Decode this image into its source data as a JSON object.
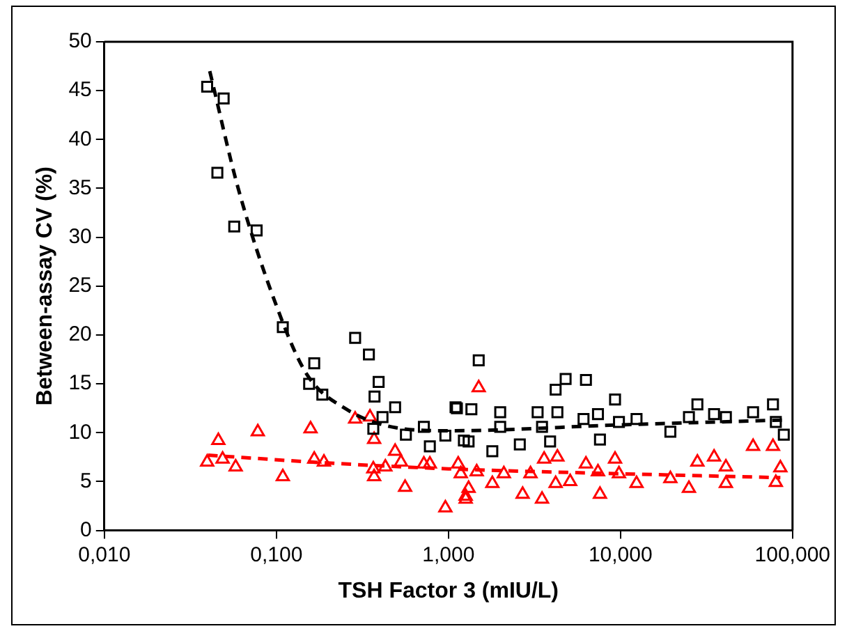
{
  "chart_data": {
    "type": "scatter",
    "xlabel": "TSH Factor 3 (mIU/L)",
    "ylabel": "Between-assay CV (%)",
    "log": "x",
    "grid": false,
    "legend": false,
    "xlim": [
      0.01,
      100
    ],
    "xticks": [
      {
        "value": 0.01,
        "label": "0,010"
      },
      {
        "value": 0.1,
        "label": "0,100"
      },
      {
        "value": 1,
        "label": "1,000"
      },
      {
        "value": 10,
        "label": "10,000"
      },
      {
        "value": 100,
        "label": "100,000"
      }
    ],
    "ylim": [
      0,
      50
    ],
    "yticks": [
      0,
      5,
      10,
      15,
      20,
      25,
      30,
      35,
      40,
      45,
      50
    ],
    "series": [
      {
        "type": "scatter",
        "color": "#000000",
        "marker": "square",
        "x": [
          0.0396,
          0.0494,
          0.0454,
          0.0569,
          0.0768,
          0.109,
          0.166,
          0.155,
          0.185,
          0.287,
          0.345,
          0.393,
          0.372,
          0.49,
          0.414,
          0.366,
          0.566,
          0.72,
          0.78,
          0.96,
          1.12,
          1.23,
          1.5,
          1.1,
          1.36,
          1.31,
          1.8,
          2.0,
          2.0,
          2.6,
          3.3,
          3.5,
          4.3,
          4.2,
          4.8,
          6.3,
          3.9,
          6.1,
          7.6,
          7.4,
          9.3,
          9.8,
          12.4,
          19.5,
          25,
          28,
          35,
          41,
          59,
          77,
          80,
          89
        ],
        "values": [
          45.4,
          44.2,
          36.6,
          31.1,
          30.7,
          20.8,
          17.1,
          15.0,
          13.9,
          19.7,
          18.0,
          15.2,
          13.7,
          12.6,
          11.6,
          10.4,
          9.8,
          10.6,
          8.6,
          9.7,
          12.5,
          9.2,
          17.4,
          12.6,
          12.4,
          9.1,
          8.1,
          12.1,
          10.6,
          8.8,
          12.1,
          10.6,
          12.1,
          14.4,
          15.5,
          15.4,
          9.1,
          11.4,
          9.3,
          11.9,
          13.4,
          11.1,
          11.4,
          10.1,
          11.6,
          12.9,
          11.9,
          11.6,
          12.1,
          12.9,
          11.1,
          9.8
        ]
      },
      {
        "type": "scatter",
        "color": "#ff0000",
        "marker": "triangle",
        "x": [
          0.0396,
          0.046,
          0.0487,
          0.058,
          0.078,
          0.109,
          0.158,
          0.166,
          0.189,
          0.287,
          0.35,
          0.37,
          0.366,
          0.37,
          0.43,
          0.49,
          0.53,
          0.56,
          0.72,
          0.78,
          0.96,
          1.14,
          1.18,
          1.26,
          1.5,
          1.26,
          1.31,
          1.46,
          1.8,
          2.1,
          2.7,
          3.0,
          3.5,
          3.6,
          4.3,
          4.2,
          5.1,
          6.3,
          7.4,
          7.6,
          9.3,
          9.8,
          12.4,
          19.5,
          25,
          28,
          35,
          41,
          41,
          59,
          77,
          85,
          80
        ],
        "values": [
          7.0,
          9.2,
          7.3,
          6.5,
          10.1,
          5.5,
          10.4,
          7.3,
          7.0,
          11.4,
          11.6,
          9.3,
          6.3,
          5.5,
          6.5,
          8.1,
          7.0,
          4.4,
          6.8,
          6.8,
          2.3,
          6.8,
          5.8,
          3.2,
          14.6,
          3.5,
          4.3,
          6.0,
          4.8,
          5.8,
          3.7,
          5.8,
          3.2,
          7.3,
          7.5,
          4.8,
          5.0,
          6.8,
          6.0,
          3.7,
          7.3,
          5.8,
          4.8,
          5.3,
          4.3,
          7.0,
          7.5,
          6.5,
          4.8,
          8.6,
          8.6,
          6.4,
          4.9
        ]
      },
      {
        "type": "line",
        "color": "#000000",
        "marker": "none",
        "line_style": "dashed",
        "x": [
          0.041,
          0.06,
          0.1,
          0.15,
          0.25,
          0.5,
          1,
          10,
          90
        ],
        "values": [
          47,
          35,
          23,
          16,
          12.5,
          10.5,
          10.2,
          10.8,
          11.3
        ]
      },
      {
        "type": "line",
        "color": "#ff0000",
        "marker": "none",
        "line_style": "dashed",
        "x": [
          0.04,
          0.2,
          1,
          10,
          85
        ],
        "values": [
          7.7,
          6.9,
          6.3,
          5.8,
          5.4
        ]
      }
    ]
  }
}
